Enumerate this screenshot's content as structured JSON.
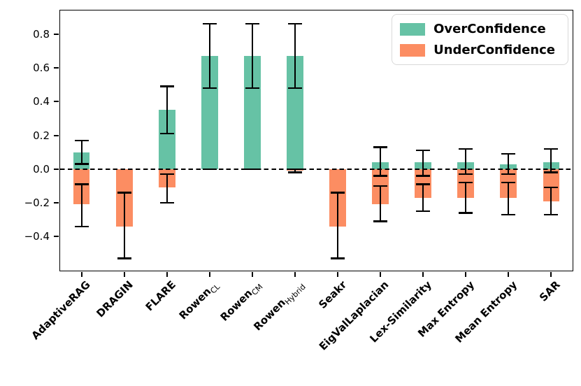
{
  "chart_data": {
    "type": "bar",
    "title": "",
    "xlabel": "",
    "ylabel": "",
    "categories": [
      {
        "text": "AdaptiveRAG",
        "sub": ""
      },
      {
        "text": "DRAGIN",
        "sub": ""
      },
      {
        "text": "FLARE",
        "sub": ""
      },
      {
        "text": "Rowen",
        "sub": "CL"
      },
      {
        "text": "Rowen",
        "sub": "CM"
      },
      {
        "text": "Rowen",
        "sub": "Hybrid"
      },
      {
        "text": "Seakr",
        "sub": ""
      },
      {
        "text": "EigValLaplacian",
        "sub": ""
      },
      {
        "text": "Lex-Similarity",
        "sub": ""
      },
      {
        "text": "Max Entropy",
        "sub": ""
      },
      {
        "text": "Mean Entropy",
        "sub": ""
      },
      {
        "text": "SAR",
        "sub": ""
      }
    ],
    "series": [
      {
        "name": "OverConfidence",
        "color": "#66c2a5",
        "values": [
          0.1,
          0,
          0.35,
          0.67,
          0.67,
          0.67,
          0,
          0.04,
          0.04,
          0.04,
          0.03,
          0.04
        ],
        "err_lo": [
          0.03,
          null,
          0.21,
          0.48,
          0.48,
          0.48,
          null,
          -0.04,
          -0.04,
          -0.03,
          -0.03,
          -0.02
        ],
        "err_hi": [
          0.17,
          null,
          0.49,
          0.86,
          0.86,
          0.86,
          null,
          0.13,
          0.11,
          0.12,
          0.09,
          0.12
        ]
      },
      {
        "name": "UnderConfidence",
        "color": "#fc8d62",
        "values": [
          -0.21,
          -0.34,
          -0.11,
          0,
          0,
          -0.01,
          -0.34,
          -0.21,
          -0.17,
          -0.17,
          -0.17,
          -0.19
        ],
        "err_lo": [
          -0.34,
          -0.53,
          -0.2,
          0,
          0,
          -0.02,
          -0.53,
          -0.31,
          -0.25,
          -0.26,
          -0.27,
          -0.27
        ],
        "err_hi": [
          -0.09,
          -0.14,
          -0.03,
          0,
          0,
          0.0,
          -0.14,
          -0.1,
          -0.09,
          -0.08,
          -0.08,
          -0.11
        ]
      }
    ],
    "ylim": [
      -0.602,
      0.94
    ],
    "yticks": [
      -0.4,
      -0.2,
      0.0,
      0.2,
      0.4,
      0.6,
      0.8
    ],
    "zero_line": true,
    "grid": false,
    "legend_position": "top-right"
  }
}
